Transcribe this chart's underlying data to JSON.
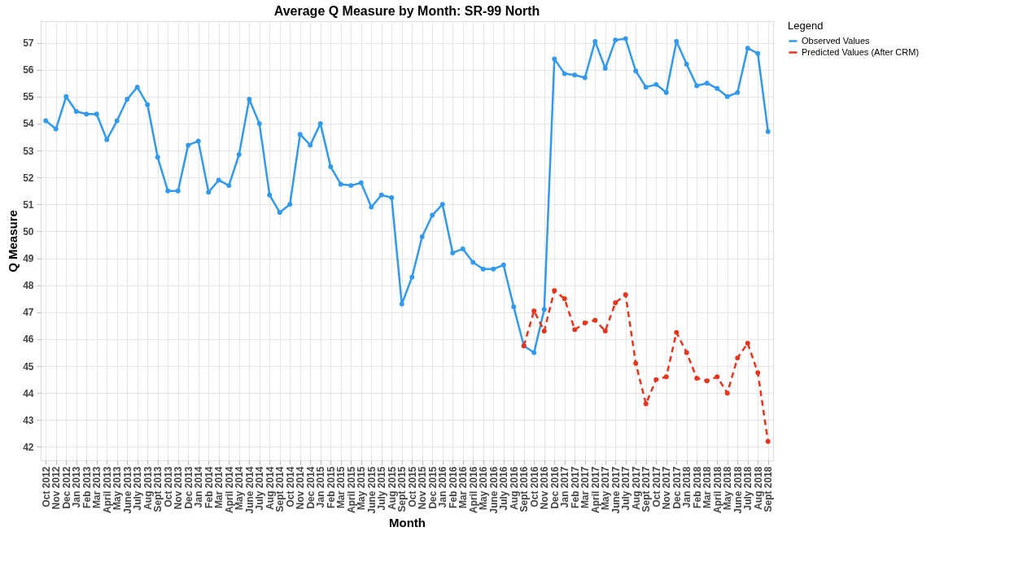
{
  "chart_data": {
    "type": "line",
    "title": "Average Q Measure by Month: SR-99 North",
    "xlabel": "Month",
    "ylabel": "Q Measure",
    "legend_title": "Legend",
    "legend": "right",
    "grid": true,
    "marker": "circle",
    "categories": [
      "Oct 2012",
      "Nov 2012",
      "Dec 2012",
      "Jan 2013",
      "Feb 2013",
      "Mar 2013",
      "April 2013",
      "May 2013",
      "June 2013",
      "July 2013",
      "Aug 2013",
      "Sept 2013",
      "Oct 2013",
      "Nov 2013",
      "Dec 2013",
      "Jan 2014",
      "Feb 2014",
      "Mar 2014",
      "April 2014",
      "May 2014",
      "June 2014",
      "July 2014",
      "Aug 2014",
      "Sept 2014",
      "Oct 2014",
      "Nov 2014",
      "Dec 2014",
      "Jan 2015",
      "Feb 2015",
      "Mar 2015",
      "April 2015",
      "May 2015",
      "June 2015",
      "July 2015",
      "Aug 2015",
      "Sept 2015",
      "Oct 2015",
      "Nov 2015",
      "Dec 2015",
      "Jan 2016",
      "Feb 2016",
      "Mar 2016",
      "April 2016",
      "May 2016",
      "June 2016",
      "July 2016",
      "Aug 2016",
      "Sept 2016",
      "Oct 2016",
      "Nov 2016",
      "Dec 2016",
      "Jan 2017",
      "Feb 2017",
      "Mar 2017",
      "April 2017",
      "May 2017",
      "June 2017",
      "July 2017",
      "Aug 2017",
      "Sept 2017",
      "Oct 2017",
      "Nov 2017",
      "Dec 2017",
      "Jan 2018",
      "Feb 2018",
      "Mar 2018",
      "April 2018",
      "May 2018",
      "June 2018",
      "July 2018",
      "Aug 2018",
      "Sept 2018"
    ],
    "ylim": [
      41.5,
      57.8
    ],
    "yticks": [
      42,
      43,
      44,
      45,
      46,
      47,
      48,
      49,
      50,
      51,
      52,
      53,
      54,
      55,
      56,
      57
    ],
    "series": [
      {
        "name": "Observed Values",
        "color": "#3399ee",
        "line_style": "solid",
        "values": [
          54.1,
          53.8,
          55.0,
          54.45,
          54.35,
          54.35,
          53.4,
          54.1,
          54.9,
          55.35,
          54.7,
          52.75,
          51.5,
          51.5,
          53.2,
          53.35,
          51.45,
          51.9,
          51.7,
          52.85,
          54.9,
          54.0,
          51.35,
          50.7,
          51.0,
          53.6,
          53.2,
          54.0,
          52.4,
          51.75,
          51.7,
          51.8,
          50.9,
          51.35,
          51.25,
          47.3,
          48.3,
          49.8,
          50.6,
          51.0,
          49.2,
          49.35,
          48.85,
          48.6,
          48.6,
          48.75,
          47.2,
          45.75,
          45.5,
          47.1,
          56.4,
          55.85,
          55.8,
          55.7,
          57.05,
          56.05,
          57.1,
          57.15,
          55.95,
          55.35,
          55.45,
          55.15,
          57.05,
          56.2,
          55.4,
          55.5,
          55.3,
          55.0,
          55.15,
          56.8,
          56.6,
          53.7
        ]
      },
      {
        "name": "Predicted Values (After CRM)",
        "color": "#e8341c",
        "line_style": "dashed",
        "values": [
          null,
          null,
          null,
          null,
          null,
          null,
          null,
          null,
          null,
          null,
          null,
          null,
          null,
          null,
          null,
          null,
          null,
          null,
          null,
          null,
          null,
          null,
          null,
          null,
          null,
          null,
          null,
          null,
          null,
          null,
          null,
          null,
          null,
          null,
          null,
          null,
          null,
          null,
          null,
          null,
          null,
          null,
          null,
          null,
          null,
          null,
          null,
          45.75,
          47.05,
          46.3,
          47.8,
          47.5,
          46.35,
          46.6,
          46.7,
          46.3,
          47.35,
          47.65,
          45.1,
          43.6,
          44.5,
          44.6,
          46.25,
          45.5,
          44.55,
          44.45,
          44.6,
          44.0,
          45.3,
          45.85,
          44.75,
          42.2
        ]
      }
    ]
  }
}
